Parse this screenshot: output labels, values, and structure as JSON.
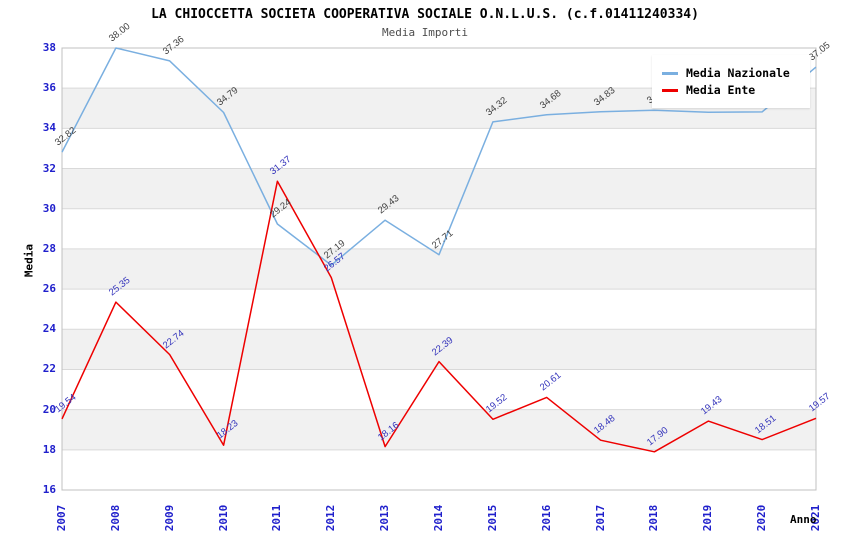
{
  "chart_data": {
    "type": "line",
    "title": "LA CHIOCCETTA SOCIETA COOPERATIVA SOCIALE O.N.L.U.S. (c.f.01411240334)",
    "subtitle": "Media Importi",
    "xlabel": "Anno",
    "ylabel": "Media",
    "ylim": [
      16,
      38
    ],
    "ytick_step": 2,
    "grid": "horizontal gridlines with alternating light-gray bands",
    "legend_position": "top-right overlay box",
    "axis_tick_color": "#2020cc",
    "band_color": "#f1f1f1",
    "gridline_color": "#d9d9d9",
    "plot_border_color": "#c0c0c0",
    "categories": [
      "2007",
      "2008",
      "2009",
      "2010",
      "2011",
      "2012",
      "2013",
      "2014",
      "2015",
      "2016",
      "2017",
      "2018",
      "2019",
      "2020",
      "2021"
    ],
    "series": [
      {
        "name": "Media Nazionale",
        "color": "#7aafe0",
        "label_color": "#3f3f3f",
        "values": [
          32.82,
          38.0,
          37.36,
          34.79,
          29.24,
          27.19,
          29.43,
          27.71,
          34.32,
          34.68,
          34.83,
          34.9,
          34.8,
          34.82,
          37.05
        ],
        "labels": [
          "32.82",
          "38.00",
          "37.36",
          "34.79",
          "29.24",
          "27.19",
          "29.43",
          "27.71",
          "34.32",
          "34.68",
          "34.83",
          "34.90",
          "34.80",
          "34.82",
          "37.05"
        ]
      },
      {
        "name": "Media Ente",
        "color": "#ee0000",
        "label_color": "#3333bb",
        "values": [
          19.54,
          25.35,
          22.74,
          18.23,
          31.37,
          26.57,
          18.16,
          22.39,
          19.52,
          20.61,
          18.48,
          17.9,
          19.43,
          18.51,
          19.57
        ],
        "labels": [
          "19.54",
          "25.35",
          "22.74",
          "18.23",
          "31.37",
          "26.57",
          "18.16",
          "22.39",
          "19.52",
          "20.61",
          "18.48",
          "17.90",
          "19.43",
          "18.51",
          "19.57"
        ]
      }
    ]
  }
}
